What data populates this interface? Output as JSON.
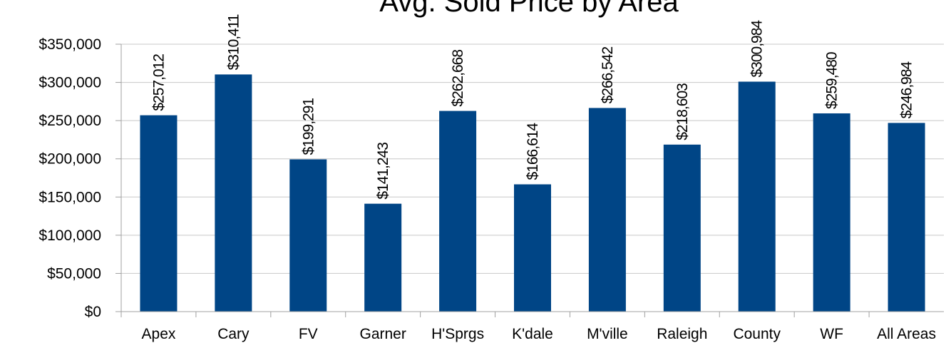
{
  "chart_data": {
    "type": "bar",
    "title": "Avg. Sold Price by Area",
    "xlabel": "",
    "ylabel": "",
    "categories": [
      "Apex",
      "Cary",
      "FV",
      "Garner",
      "H'Sprgs",
      "K'dale",
      "M'ville",
      "Raleigh",
      "County",
      "WF",
      "All Areas"
    ],
    "values": [
      257012,
      310411,
      199291,
      141243,
      262668,
      166614,
      266542,
      218603,
      300984,
      259480,
      246984
    ],
    "data_labels": [
      "$257,012",
      "$310,411",
      "$199,291",
      "$141,243",
      "$262,668",
      "$166,614",
      "$266,542",
      "$218,603",
      "$300,984",
      "$259,480",
      "$246,984"
    ],
    "ylim": [
      0,
      350000
    ],
    "yticks": [
      0,
      50000,
      100000,
      150000,
      200000,
      250000,
      300000,
      350000
    ],
    "ytick_labels": [
      "$0",
      "$50,000",
      "$100,000",
      "$150,000",
      "$200,000",
      "$250,000",
      "$300,000",
      "$350,000"
    ],
    "grid": true,
    "legend": "none",
    "bar_color": "#004586"
  }
}
